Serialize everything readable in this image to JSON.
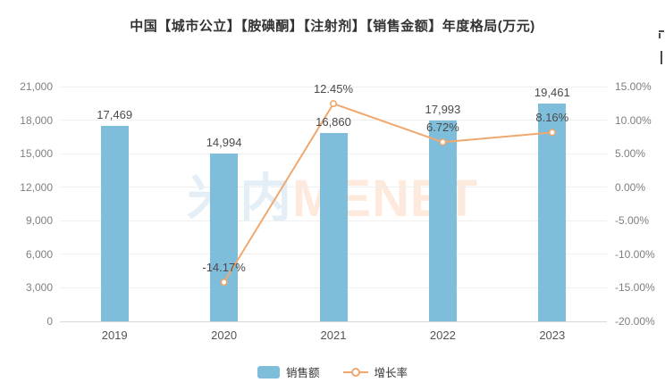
{
  "title": "中国【城市公立】【胺碘酮】【注射剂】【销售金额】年度格局(万元)",
  "watermark": {
    "part1": "米内",
    "part2": "MENET"
  },
  "colors": {
    "bar": "#7fbeda",
    "line": "#f0a86e",
    "marker_fill": "#ffffff",
    "title_text": "#333333",
    "axis_text": "#7f7f7f",
    "xaxis_text": "#555555",
    "value_label": "#4a4a4a",
    "grid": "#efefef",
    "axis_line": "#d9d9d9",
    "watermark_blue": "#e3eef6",
    "watermark_peach": "#fdeadd",
    "background": "#ffffff"
  },
  "chart_data": {
    "type": "bar+line",
    "title": "中国【城市公立】【胺碘酮】【注射剂】【销售金额】年度格局(万元)",
    "categories": [
      "2019",
      "2020",
      "2021",
      "2022",
      "2023"
    ],
    "series": [
      {
        "name": "销售额",
        "type": "bar",
        "axis": "left",
        "values": [
          17469,
          14994,
          16860,
          17993,
          19461
        ],
        "labels": [
          "17,469",
          "14,994",
          "16,860",
          "17,993",
          "19,461"
        ]
      },
      {
        "name": "增长率",
        "type": "line",
        "axis": "right",
        "values": [
          null,
          -14.17,
          12.45,
          6.72,
          8.16
        ],
        "labels": [
          null,
          "-14.17%",
          "12.45%",
          "6.72%",
          "8.16%"
        ]
      }
    ],
    "left_axis": {
      "min": 0,
      "max": 21000,
      "step": 3000,
      "tick_labels": [
        "0",
        "3,000",
        "6,000",
        "9,000",
        "12,000",
        "15,000",
        "18,000",
        "21,000"
      ]
    },
    "right_axis": {
      "min": -20,
      "max": 15,
      "step": 5,
      "tick_labels": [
        "-20.00%",
        "-15.00%",
        "-10.00%",
        "-5.00%",
        "0.00%",
        "5.00%",
        "10.00%",
        "15.00%"
      ]
    },
    "grid": true,
    "legend_position": "bottom"
  }
}
